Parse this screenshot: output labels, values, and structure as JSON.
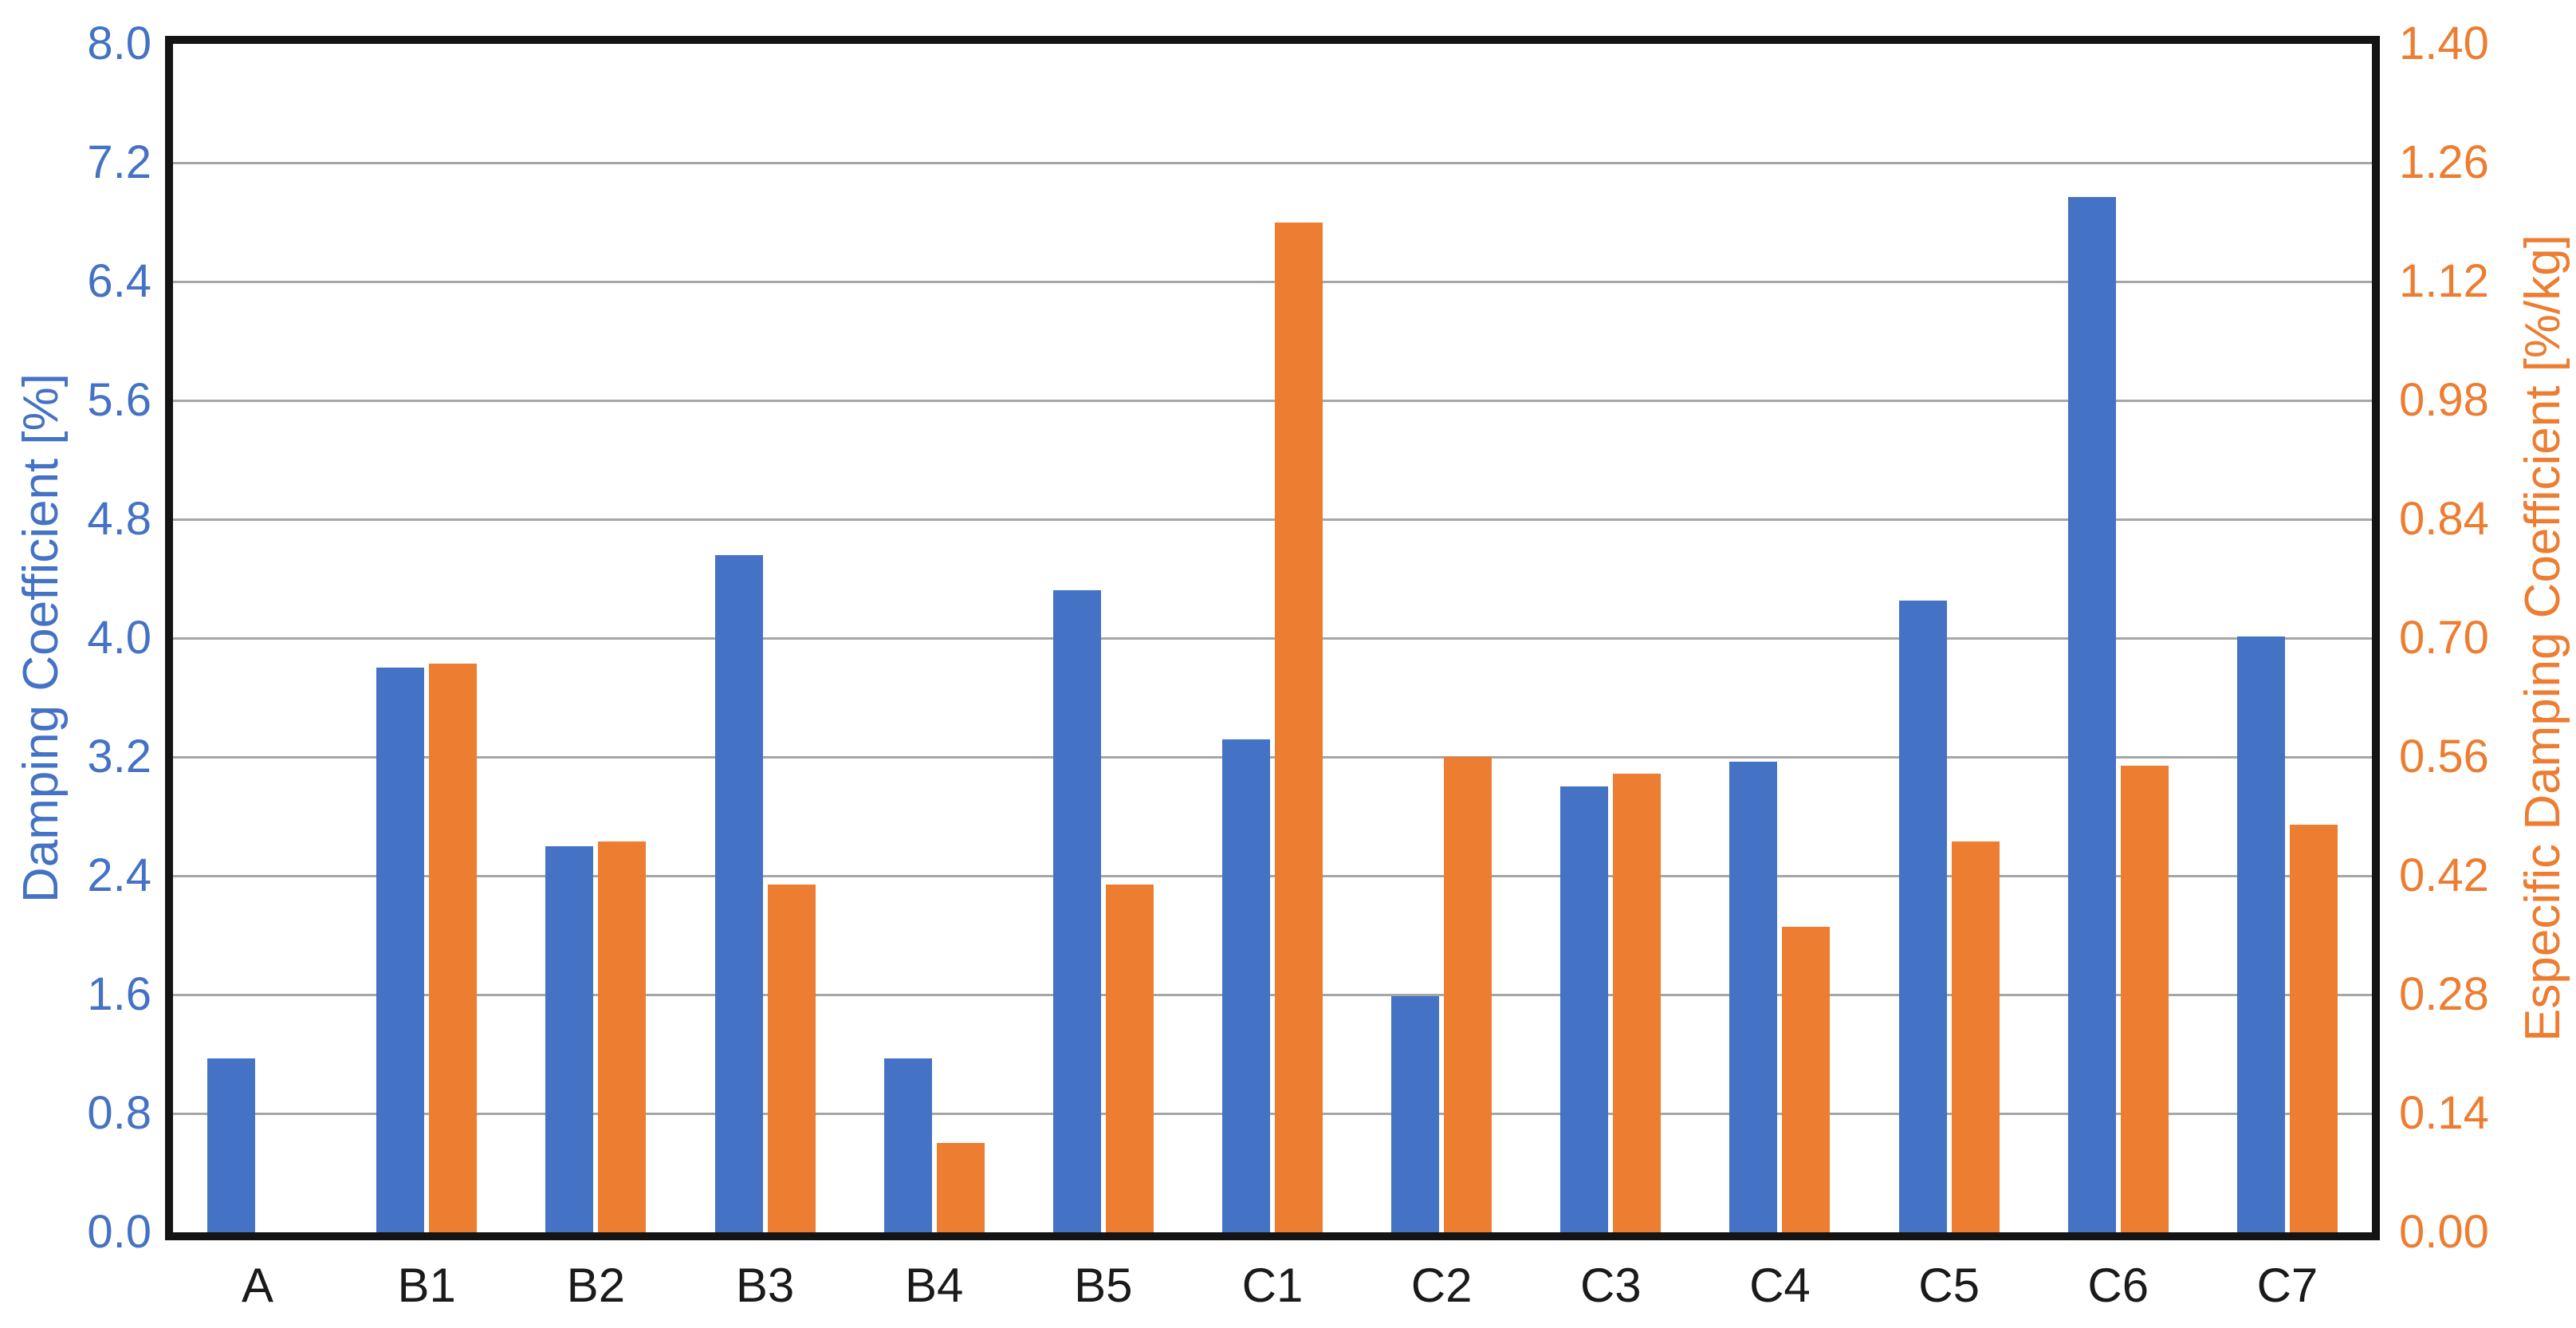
{
  "chart_data": {
    "type": "bar",
    "title": "",
    "categories": [
      "A",
      "B1",
      "B2",
      "B3",
      "B4",
      "B5",
      "C1",
      "C2",
      "C3",
      "C4",
      "C5",
      "C6",
      "C7"
    ],
    "series": [
      {
        "name": "Damping Coefficient",
        "axis": "left",
        "color": "#4472C4",
        "values": [
          1.17,
          3.8,
          2.6,
          4.56,
          1.17,
          4.32,
          3.32,
          1.59,
          3.0,
          3.17,
          4.25,
          6.97,
          4.01
        ]
      },
      {
        "name": "Especific Damping Coefficient",
        "axis": "right",
        "color": "#ED7D31",
        "values": [
          null,
          0.67,
          0.46,
          0.41,
          0.105,
          0.41,
          1.19,
          0.56,
          0.54,
          0.36,
          0.46,
          0.55,
          0.48
        ]
      }
    ],
    "left_axis": {
      "label": "Damping Coefficient [%]",
      "min": 0,
      "max": 8,
      "step": 0.8,
      "ticks": [
        "0.0",
        "0.8",
        "1.6",
        "2.4",
        "3.2",
        "4.0",
        "4.8",
        "5.6",
        "6.4",
        "7.2",
        "8.0"
      ],
      "color": "#4472C4"
    },
    "right_axis": {
      "label": "Especific Damping Coefficient [%/kg]",
      "min": 0,
      "max": 1.4,
      "step": 0.14,
      "ticks": [
        "0.00",
        "0.14",
        "0.28",
        "0.42",
        "0.56",
        "0.70",
        "0.84",
        "0.98",
        "1.12",
        "1.26",
        "1.40"
      ],
      "color": "#ED7D31"
    },
    "grid": true,
    "legend": false,
    "colors": {
      "gridline": "#a6a6a6",
      "plot_border": "#141414",
      "x_labels": "#1a1a1a",
      "background": "#ffffff"
    }
  }
}
